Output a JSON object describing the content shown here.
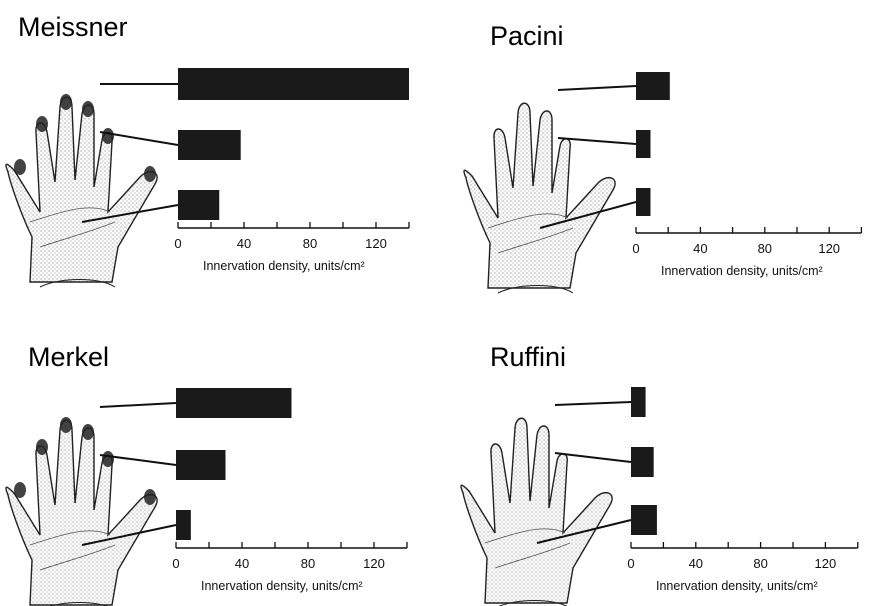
{
  "chart_data": [
    {
      "type": "bar",
      "orientation": "horizontal",
      "title": "Meissner",
      "categories": [
        "Fingertip",
        "Finger",
        "Palm"
      ],
      "values": [
        140,
        38,
        25
      ],
      "xlabel": "Innervation density, units/cm²",
      "xticks": [
        "0",
        "40",
        "80",
        "120"
      ],
      "xlim": [
        0,
        140
      ],
      "grid": false,
      "bar_color": "#1a1a1a"
    },
    {
      "type": "bar",
      "orientation": "horizontal",
      "title": "Pacini",
      "categories": [
        "Fingertip",
        "Finger",
        "Palm"
      ],
      "values": [
        21,
        9,
        9
      ],
      "xlabel": "Innervation density, units/cm²",
      "xticks": [
        "0",
        "40",
        "80",
        "120"
      ],
      "xlim": [
        0,
        140
      ],
      "grid": false,
      "bar_color": "#1a1a1a"
    },
    {
      "type": "bar",
      "orientation": "horizontal",
      "title": "Merkel",
      "categories": [
        "Fingertip",
        "Finger",
        "Palm"
      ],
      "values": [
        70,
        30,
        9
      ],
      "xlabel": "Innervation density, units/cm²",
      "xticks": [
        "0",
        "40",
        "80",
        "120"
      ],
      "xlim": [
        0,
        140
      ],
      "grid": false,
      "bar_color": "#1a1a1a"
    },
    {
      "type": "bar",
      "orientation": "horizontal",
      "title": "Ruffini",
      "categories": [
        "Fingertip",
        "Finger",
        "Palm"
      ],
      "values": [
        9,
        14,
        16
      ],
      "xlabel": "Innervation density, units/cm²",
      "xticks": [
        "0",
        "40",
        "80",
        "120"
      ],
      "xlim": [
        0,
        140
      ],
      "grid": false,
      "bar_color": "#1a1a1a"
    }
  ]
}
